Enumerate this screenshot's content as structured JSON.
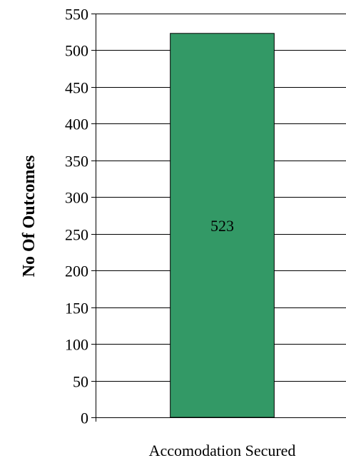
{
  "chart_data": {
    "type": "bar",
    "categories": [
      "Accomodation Secured"
    ],
    "values": [
      523
    ],
    "data_labels": [
      "523"
    ],
    "title": "",
    "xlabel": "",
    "ylabel": "No Of Outcomes",
    "ylim": [
      0,
      550
    ],
    "yticks": [
      0,
      50,
      100,
      150,
      200,
      250,
      300,
      350,
      400,
      450,
      500,
      550
    ],
    "grid": true,
    "legend": "none",
    "bar_color": "#339966",
    "bar_edge_color": "#000000",
    "grid_color": "#000000"
  }
}
